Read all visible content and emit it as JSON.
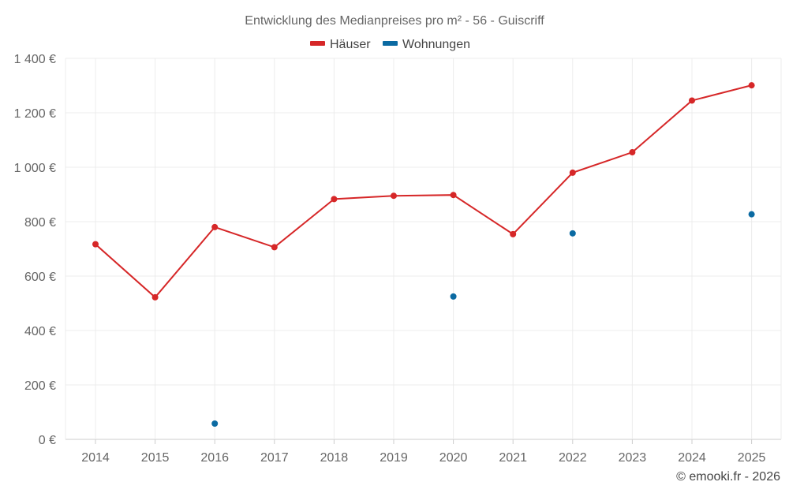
{
  "chart_data": {
    "type": "line",
    "title": "Entwicklung des Medianpreises pro m² - 56 - Guiscriff",
    "categories": [
      "2014",
      "2015",
      "2016",
      "2017",
      "2018",
      "2019",
      "2020",
      "2021",
      "2022",
      "2023",
      "2024",
      "2025"
    ],
    "series": [
      {
        "name": "Häuser",
        "color": "#d62728",
        "line": true,
        "values": [
          717,
          522,
          780,
          706,
          883,
          895,
          898,
          754,
          980,
          1055,
          1245,
          1301
        ]
      },
      {
        "name": "Wohnungen",
        "color": "#0b6aa2",
        "line": false,
        "values": [
          null,
          null,
          58,
          null,
          null,
          null,
          525,
          null,
          757,
          null,
          null,
          827
        ]
      }
    ],
    "ylim": [
      0,
      1400
    ],
    "yticks": [
      0,
      200,
      400,
      600,
      800,
      1000,
      1200,
      1400
    ],
    "ytick_labels": [
      "0 €",
      "200 €",
      "400 €",
      "600 €",
      "800 €",
      "1 000 €",
      "1 200 €",
      "1 400 €"
    ],
    "xlabel": "",
    "ylabel": "",
    "grid": true,
    "legend_position": "top-center"
  },
  "credit": "© emooki.fr - 2026"
}
